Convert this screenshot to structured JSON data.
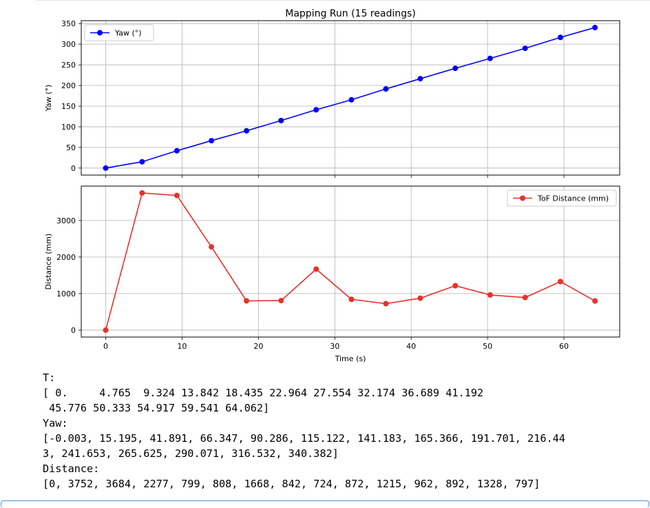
{
  "chart_data": [
    {
      "type": "line",
      "title": "Mapping Run (15 readings)",
      "xlabel": "",
      "ylabel": "Yaw (°)",
      "xlim": [
        -3.2,
        67.3
      ],
      "ylim": [
        -17,
        357
      ],
      "yticks": [
        0,
        50,
        100,
        150,
        200,
        250,
        300,
        350
      ],
      "xticks": [
        0,
        10,
        20,
        30,
        40,
        50,
        60
      ],
      "grid": true,
      "legend": "top-left",
      "series": [
        {
          "name": "Yaw (°)",
          "color": "#0000ff",
          "x": [
            0,
            4.765,
            9.324,
            13.842,
            18.435,
            22.964,
            27.554,
            32.174,
            36.689,
            41.192,
            45.776,
            50.333,
            54.917,
            59.541,
            64.062
          ],
          "values": [
            -0.003,
            15.195,
            41.891,
            66.347,
            90.286,
            115.122,
            141.183,
            165.366,
            191.701,
            216.443,
            241.653,
            265.625,
            290.071,
            316.532,
            340.382
          ]
        }
      ]
    },
    {
      "type": "line",
      "title": "",
      "xlabel": "Time (s)",
      "ylabel": "Distance (mm)",
      "xlim": [
        -3.2,
        67.3
      ],
      "ylim": [
        -190,
        3940
      ],
      "yticks": [
        0,
        1000,
        2000,
        3000
      ],
      "xticks": [
        0,
        10,
        20,
        30,
        40,
        50,
        60
      ],
      "grid": true,
      "legend": "top-right",
      "series": [
        {
          "name": "ToF Distance (mm)",
          "color": "#e8312a",
          "x": [
            0,
            4.765,
            9.324,
            13.842,
            18.435,
            22.964,
            27.554,
            32.174,
            36.689,
            41.192,
            45.776,
            50.333,
            54.917,
            59.541,
            64.062
          ],
          "values": [
            0,
            3752,
            3684,
            2277,
            799,
            808,
            1668,
            842,
            724,
            872,
            1215,
            962,
            892,
            1328,
            797
          ]
        }
      ]
    }
  ],
  "output": {
    "text": "T:\n[ 0.     4.765  9.324 13.842 18.435 22.964 27.554 32.174 36.689 41.192\n 45.776 50.333 54.917 59.541 64.062]\nYaw:\n[-0.003, 15.195, 41.891, 66.347, 90.286, 115.122, 141.183, 165.366, 191.701, 216.44\n3, 241.653, 265.625, 290.071, 316.532, 340.382]\nDistance:\n[0, 3752, 3684, 2277, 799, 808, 1668, 842, 724, 872, 1215, 962, 892, 1328, 797]"
  }
}
